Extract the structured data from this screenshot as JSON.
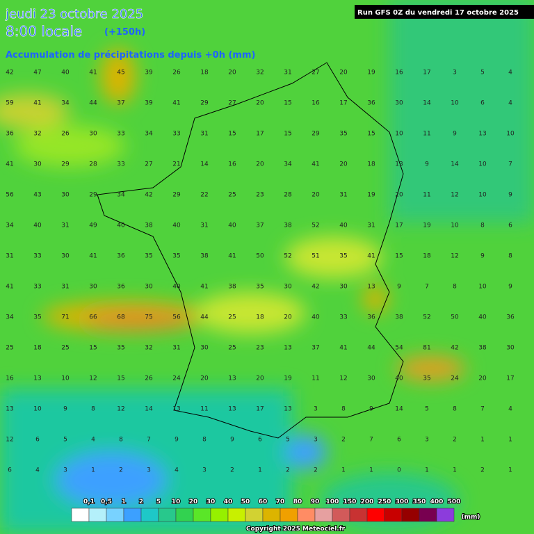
{
  "header": {
    "date": "jeudi 23 octobre 2025",
    "time": "8:00 locale",
    "lead": "(+150h)",
    "subtitle": "Accumulation de précipitations depuis +0h (mm)",
    "run": "Run GFS 0Z du vendredi 17 octobre 2025"
  },
  "map": {
    "values": [
      [
        42,
        47,
        40,
        41,
        45,
        39,
        26,
        18,
        20,
        32,
        31,
        27,
        20,
        19,
        16,
        17,
        3,
        5,
        4
      ],
      [
        59,
        41,
        34,
        44,
        37,
        39,
        41,
        29,
        27,
        20,
        15,
        16,
        17,
        36,
        30,
        14,
        10,
        6,
        4
      ],
      [
        36,
        32,
        26,
        30,
        33,
        34,
        33,
        31,
        15,
        17,
        15,
        29,
        35,
        15,
        10,
        11,
        9,
        13,
        10
      ],
      [
        41,
        30,
        29,
        28,
        33,
        27,
        21,
        14,
        16,
        20,
        34,
        41,
        20,
        18,
        13,
        9,
        14,
        10,
        7
      ],
      [
        56,
        43,
        30,
        29,
        34,
        42,
        29,
        22,
        25,
        23,
        28,
        20,
        31,
        19,
        20,
        11,
        12,
        10,
        9
      ],
      [
        34,
        40,
        31,
        49,
        40,
        38,
        40,
        31,
        40,
        37,
        38,
        52,
        40,
        31,
        17,
        19,
        10,
        8,
        6
      ],
      [
        31,
        33,
        30,
        41,
        36,
        35,
        35,
        38,
        41,
        50,
        52,
        51,
        35,
        41,
        15,
        18,
        12,
        9,
        8
      ],
      [
        41,
        33,
        31,
        30,
        36,
        30,
        40,
        41,
        38,
        35,
        30,
        42,
        30,
        13,
        9,
        7,
        8,
        10,
        9
      ],
      [
        34,
        35,
        71,
        66,
        68,
        75,
        56,
        44,
        25,
        18,
        20,
        40,
        33,
        36,
        38,
        52,
        50,
        40,
        36
      ],
      [
        25,
        18,
        25,
        15,
        35,
        32,
        31,
        30,
        25,
        23,
        13,
        37,
        41,
        44,
        54,
        81,
        42,
        38,
        30
      ],
      [
        16,
        13,
        10,
        12,
        15,
        26,
        24,
        20,
        13,
        20,
        19,
        11,
        12,
        30,
        40,
        35,
        24,
        20,
        17
      ],
      [
        13,
        10,
        9,
        8,
        12,
        14,
        13,
        11,
        13,
        17,
        13,
        3,
        8,
        9,
        14,
        5,
        8,
        7,
        4
      ],
      [
        12,
        6,
        5,
        4,
        8,
        7,
        9,
        8,
        9,
        6,
        5,
        3,
        2,
        7,
        6,
        3,
        2,
        1,
        1
      ],
      [
        6,
        4,
        3,
        1,
        2,
        3,
        4,
        3,
        2,
        1,
        2,
        2,
        1,
        1,
        0,
        1,
        1,
        2,
        1
      ]
    ]
  },
  "legend": {
    "labels": [
      "0,1",
      "0,5",
      "1",
      "2",
      "5",
      "10",
      "20",
      "30",
      "40",
      "50",
      "60",
      "70",
      "80",
      "90",
      "100",
      "150",
      "200",
      "250",
      "300",
      "350",
      "400",
      "500"
    ],
    "colors": [
      "#ffffff",
      "#b4f0fa",
      "#78d2ff",
      "#3ca0ff",
      "#1ec8c8",
      "#28c88c",
      "#32d250",
      "#5ae628",
      "#96f000",
      "#c8f000",
      "#d2d232",
      "#dcb400",
      "#f0a000",
      "#ff8c64",
      "#e6a0a0",
      "#d25a5a",
      "#c83232",
      "#ff0000",
      "#c80000",
      "#960000",
      "#780050",
      "#8c3cdc"
    ],
    "unit": "(mm)"
  },
  "footer": {
    "copyright": "Copyright 2025 Meteociel.fr"
  }
}
